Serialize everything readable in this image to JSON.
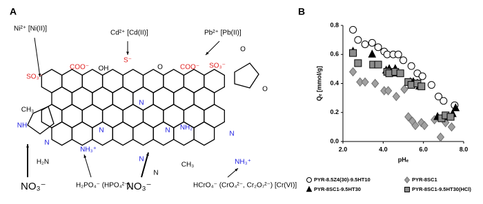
{
  "panel_a": {
    "label": "A",
    "ions": [
      "Ni²⁺ [Ni(II)]",
      "Cd²⁺ [Cd(II)]",
      "Pb²⁺ [Pb(II)]",
      "NO₃⁻",
      "H₂PO₄⁻ (HPO₄²⁻)",
      "NO₃⁻",
      "HCrO₄⁻ (CrO₄²⁻, Cr₂O₇²⁻) [Cr(VI)]"
    ],
    "groups": [
      "SO₃⁻",
      "COO⁻",
      "OH",
      "S⁻",
      "O",
      "COO⁻",
      "SO₃⁻",
      "O",
      "O",
      "CH₃",
      "NH",
      "N",
      "H₂N",
      "N",
      "N",
      "N",
      "N",
      "N",
      "CH₃",
      "NH₂",
      "N",
      "NH₃⁺",
      "NH₃⁺",
      "N"
    ]
  },
  "panel_b_label": "B",
  "chart_data": {
    "type": "scatter",
    "xlabel": "pHₑ",
    "ylabel": "Qₑ [mmol/g]",
    "xlim": [
      2,
      8
    ],
    "ylim": [
      0,
      0.8
    ],
    "xticks": [
      {
        "value": 2,
        "label": "2.0"
      },
      {
        "value": 4,
        "label": "4.0"
      },
      {
        "value": 6,
        "label": "6.0"
      },
      {
        "value": 8,
        "label": "8.0"
      }
    ],
    "yticks": [
      {
        "value": 0,
        "label": "0.0"
      },
      0.2,
      0.4,
      0.6,
      0.8
    ],
    "series": [
      {
        "name": "PYR-8.5Z4(30)-9.5HT10",
        "marker": "circle",
        "color": "#ffffff",
        "edgecolor": "#000000",
        "x": [
          2.5,
          2.75,
          3.1,
          3.45,
          3.75,
          4.05,
          4.2,
          4.5,
          4.75,
          5.0,
          5.4,
          5.7,
          5.95,
          6.4,
          6.75,
          7.0,
          7.55
        ],
        "values": [
          0.77,
          0.7,
          0.67,
          0.68,
          0.65,
          0.62,
          0.6,
          0.6,
          0.6,
          0.56,
          0.52,
          0.47,
          0.45,
          0.39,
          0.31,
          0.28,
          0.25
        ]
      },
      {
        "name": "PYR-8SC1",
        "marker": "diamond",
        "color": "#a0a0a0",
        "edgecolor": "#707070",
        "x": [
          2.5,
          2.85,
          3.1,
          3.6,
          4.05,
          4.25,
          4.65,
          5.05,
          5.25,
          5.45,
          5.6,
          5.9,
          6.05,
          6.55,
          7.1,
          6.85,
          7.4
        ],
        "values": [
          0.48,
          0.41,
          0.41,
          0.4,
          0.35,
          0.35,
          0.31,
          0.36,
          0.17,
          0.14,
          0.11,
          0.13,
          0.11,
          0.15,
          0.13,
          0.03,
          0.1
        ]
      },
      {
        "name": "PYR-8SC1-9.5HT30",
        "marker": "triangle",
        "color": "#000000",
        "edgecolor": "#000000",
        "x": [
          2.5,
          3.45,
          4.15,
          4.3,
          4.5,
          4.6,
          5.35,
          5.5,
          5.7,
          5.8,
          6.7,
          7.15,
          7.45,
          7.6
        ],
        "values": [
          0.62,
          0.6,
          0.49,
          0.5,
          0.47,
          0.5,
          0.41,
          0.41,
          0.4,
          0.38,
          0.17,
          0.17,
          0.19,
          0.23
        ]
      },
      {
        "name": "PYR-8SC1-9.5HT30(HCl)",
        "marker": "square",
        "color": "#8c8c8c",
        "edgecolor": "#000000",
        "x": [
          2.5,
          2.75,
          3.5,
          3.75,
          4.2,
          4.3,
          4.6,
          4.85,
          5.25,
          5.4,
          5.7,
          5.9,
          6.9,
          7.1,
          7.35
        ],
        "values": [
          0.61,
          0.54,
          0.53,
          0.53,
          0.48,
          0.47,
          0.48,
          0.47,
          0.41,
          0.39,
          0.4,
          0.38,
          0.16,
          0.18,
          0.17
        ]
      }
    ]
  }
}
